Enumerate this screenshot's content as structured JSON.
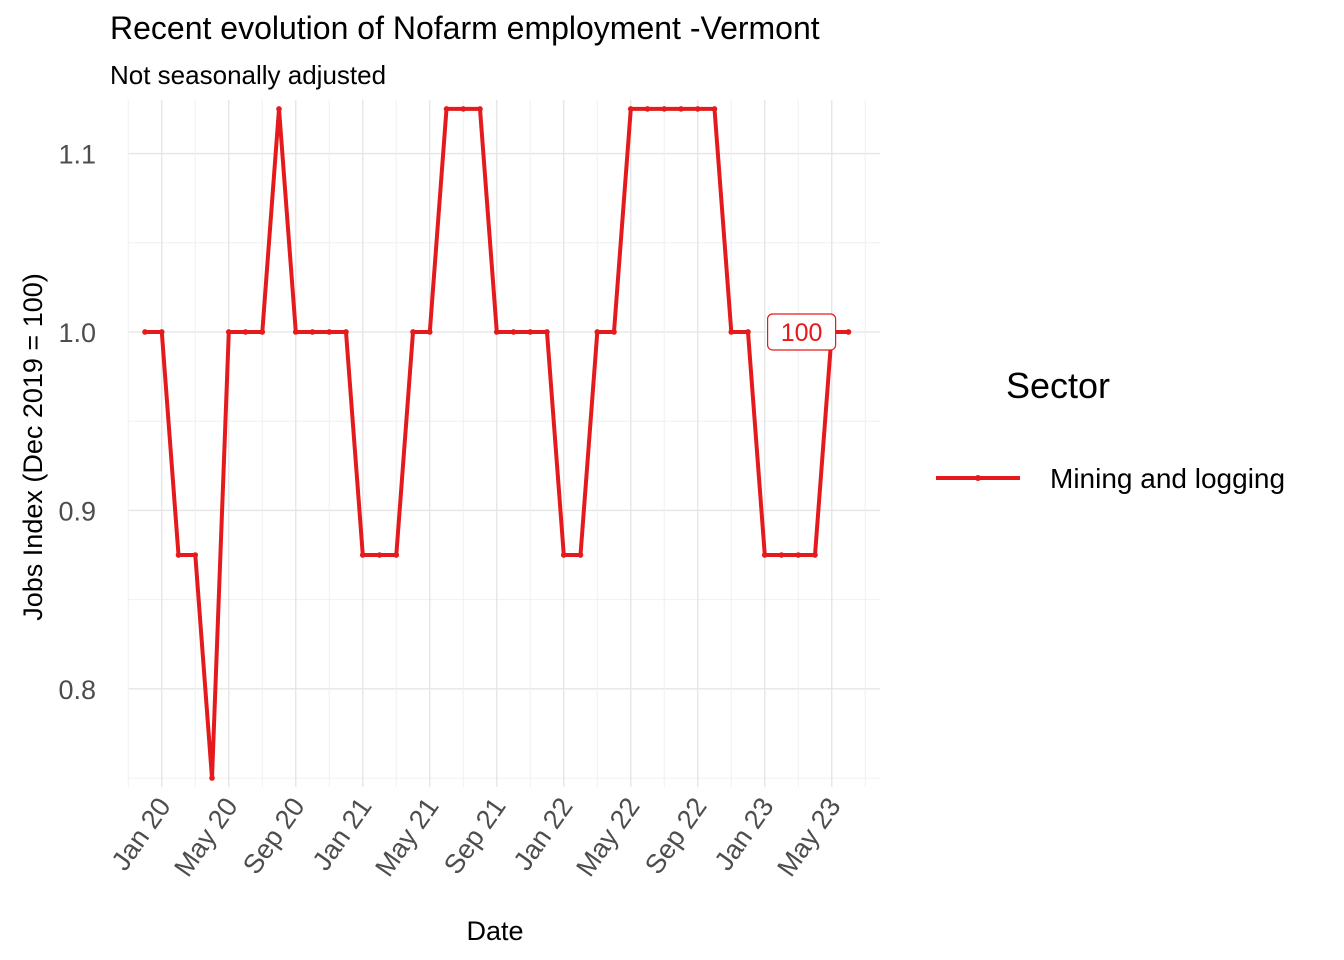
{
  "chart_data": {
    "type": "line",
    "title": "Recent evolution of Nofarm employment -Vermont",
    "subtitle": "Not seasonally adjusted",
    "xlabel": "Date",
    "ylabel": "Jobs Index (Dec 2019 = 100)",
    "ylim": [
      0.745,
      1.13
    ],
    "yticks": [
      0.8,
      0.9,
      1.0,
      1.1
    ],
    "ytick_labels": [
      "0.8",
      "0.9",
      "1.0",
      "1.1"
    ],
    "x_start": "Dec 2019",
    "xticks": [
      {
        "label": "Jan 20",
        "month": 1
      },
      {
        "label": "May 20",
        "month": 5
      },
      {
        "label": "Sep 20",
        "month": 9
      },
      {
        "label": "Jan 21",
        "month": 13
      },
      {
        "label": "May 21",
        "month": 17
      },
      {
        "label": "Sep 21",
        "month": 21
      },
      {
        "label": "Jan 22",
        "month": 25
      },
      {
        "label": "May 22",
        "month": 29
      },
      {
        "label": "Sep 22",
        "month": 33
      },
      {
        "label": "Jan 23",
        "month": 37
      },
      {
        "label": "May 23",
        "month": 41
      }
    ],
    "grid": true,
    "legend": {
      "title": "Sector",
      "position": "right"
    },
    "series": [
      {
        "name": "Mining and logging",
        "color": "#e41a1c",
        "values": [
          1.0,
          1.0,
          0.875,
          0.875,
          0.75,
          1.0,
          1.0,
          1.0,
          1.125,
          1.0,
          1.0,
          1.0,
          1.0,
          0.875,
          0.875,
          0.875,
          1.0,
          1.0,
          1.125,
          1.125,
          1.125,
          1.0,
          1.0,
          1.0,
          1.0,
          0.875,
          0.875,
          1.0,
          1.0,
          1.125,
          1.125,
          1.125,
          1.125,
          1.125,
          1.125,
          1.0,
          1.0,
          0.875,
          0.875,
          0.875,
          0.875,
          1.0,
          1.0
        ],
        "end_label": "100"
      }
    ]
  }
}
